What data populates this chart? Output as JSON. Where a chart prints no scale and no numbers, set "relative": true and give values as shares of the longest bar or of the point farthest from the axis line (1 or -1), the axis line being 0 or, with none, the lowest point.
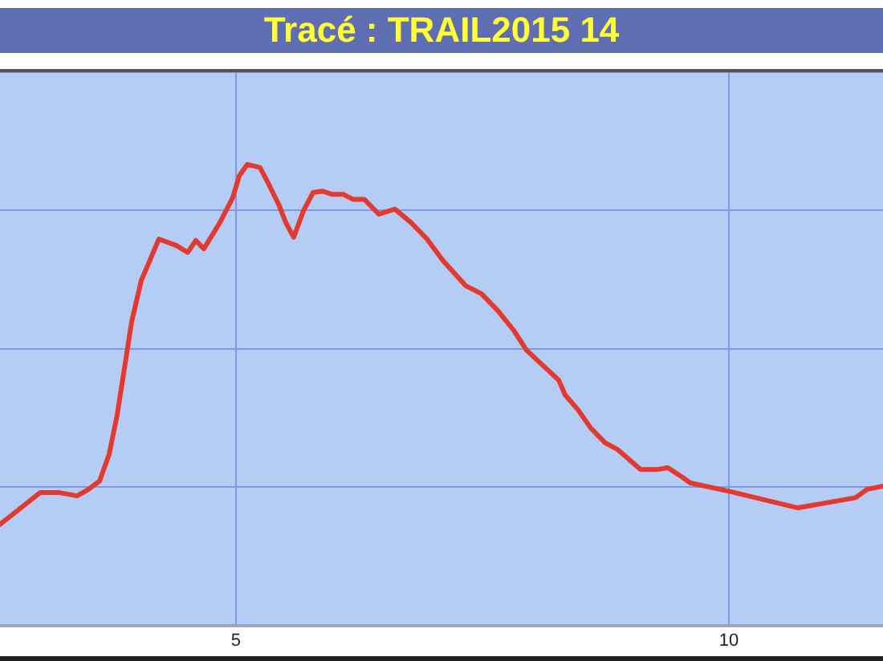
{
  "chart_data": {
    "type": "line",
    "title": "Tracé : TRAIL2015 14",
    "relative": true,
    "grid": true,
    "marker": "none",
    "line_style": "solid",
    "xlim": [
      2.606,
      11.564
    ],
    "xticks": [
      5,
      10
    ],
    "tick_labels": "x",
    "series": [
      {
        "color": "#e23a2e",
        "x": [
          2.606,
          3.013,
          3.208,
          3.388,
          3.502,
          3.616,
          3.713,
          3.795,
          3.876,
          3.941,
          4.039,
          4.218,
          4.397,
          4.511,
          4.593,
          4.674,
          4.837,
          4.967,
          5.033,
          5.114,
          5.244,
          5.342,
          5.44,
          5.505,
          5.586,
          5.684,
          5.782,
          5.879,
          5.977,
          6.091,
          6.189,
          6.303,
          6.45,
          6.612,
          6.775,
          6.938,
          7.101,
          7.329,
          7.492,
          7.655,
          7.818,
          7.948,
          8.274,
          8.339,
          8.469,
          8.599,
          8.746,
          8.876,
          9.104,
          9.267,
          9.381,
          9.511,
          9.609,
          10.0,
          10.7,
          11.287,
          11.401,
          11.564
        ],
        "values": [
          0.219,
          0.288,
          0.288,
          0.281,
          0.295,
          0.313,
          0.371,
          0.457,
          0.568,
          0.658,
          0.748,
          0.838,
          0.824,
          0.809,
          0.835,
          0.817,
          0.874,
          0.928,
          0.975,
          1,
          0.993,
          0.953,
          0.91,
          0.874,
          0.842,
          0.899,
          0.939,
          0.942,
          0.935,
          0.935,
          0.924,
          0.924,
          0.892,
          0.903,
          0.874,
          0.838,
          0.791,
          0.737,
          0.719,
          0.683,
          0.64,
          0.597,
          0.532,
          0.5,
          0.468,
          0.428,
          0.396,
          0.381,
          0.338,
          0.338,
          0.342,
          0.324,
          0.309,
          0.291,
          0.255,
          0.277,
          0.295,
          0.302
        ]
      }
    ]
  }
}
